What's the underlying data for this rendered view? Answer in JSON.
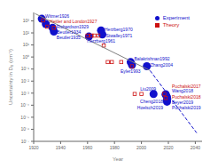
{
  "chart_data": {
    "type": "scatter",
    "x_label": "Year",
    "y_label": "Uncertainty in D₀ (cm⁻¹)",
    "log": "y",
    "grid": false,
    "legend": "upper right",
    "xlim": [
      1920,
      2045
    ],
    "xticks": [
      1920,
      1940,
      1960,
      1980,
      2000,
      2020,
      2040
    ],
    "ylim": [
      1e-07,
      5000
    ],
    "yticks": [
      {
        "value": 1e-07,
        "label": "10⁻⁷"
      },
      {
        "value": 1e-06,
        "label": "10⁻⁶"
      },
      {
        "value": 1e-05,
        "label": "10⁻⁵"
      },
      {
        "value": 0.0001,
        "label": "10⁻⁴"
      },
      {
        "value": 0.001,
        "label": "10⁻³"
      },
      {
        "value": 0.01,
        "label": "10⁻²"
      },
      {
        "value": 0.1,
        "label": "10⁻¹"
      },
      {
        "value": 1,
        "label": "10⁰"
      },
      {
        "value": 10,
        "label": "10¹"
      },
      {
        "value": 100,
        "label": "10²"
      },
      {
        "value": 1000,
        "label": "10³"
      }
    ],
    "series": [
      {
        "name": "Experiment",
        "type": "scatter",
        "color": "#1010cc",
        "marker": "circle",
        "x": [
          1926,
          1929,
          1934,
          1935,
          1961,
          1970,
          1971,
          1992,
          1993,
          2004,
          2009,
          2018,
          2019,
          2018,
          2019,
          2019
        ],
        "values": [
          1500,
          550,
          270,
          130,
          50,
          160,
          75,
          0.38,
          0.22,
          0.17,
          0.00085,
          0.0008,
          0.00048,
          0.00075,
          0.00028,
          0.000195
        ],
        "labels": [
          "Witmer1926",
          "Richardson1929",
          "Beutler1934",
          "Beutler1935",
          "Herzberg1961",
          "Herzberg1970",
          "Stwalley1971",
          "Balakrishnan1992",
          "Eyler1993",
          "Zhang2004",
          "Liu2009",
          "Cheng2018",
          "Hoelsch2019",
          "Wang2018",
          "Beyer2019",
          "Puchalski2019"
        ]
      },
      {
        "name": "Theory",
        "type": "scatter",
        "color": "#cc1010",
        "marker": "square",
        "x": [
          1927,
          1930,
          1935,
          1960,
          1963,
          1965,
          1968,
          1972,
          1975,
          1978,
          1985,
          1993,
          1995,
          2000,
          2017,
          2018
        ],
        "values": [
          1100,
          330,
          270,
          60,
          60,
          60,
          60,
          9,
          0.38,
          0.38,
          0.38,
          0.17,
          0.00085,
          0.00085,
          0.00088,
          0.0004
        ],
        "labels": [
          "Heitler and London1927",
          null,
          null,
          null,
          null,
          null,
          null,
          null,
          null,
          null,
          null,
          null,
          null,
          null,
          "Puchalski2017",
          "Puchalski2018"
        ]
      },
      {
        "type": "line",
        "color": "gray",
        "line_style": "solid",
        "x": [
          1921,
          2006
        ],
        "values": [
          4000,
          0.08
        ]
      },
      {
        "type": "line",
        "color": "#1010cc",
        "line_style": "dashed",
        "x": [
          2004,
          2041
        ],
        "values": [
          0.17,
          5e-07
        ]
      }
    ]
  }
}
